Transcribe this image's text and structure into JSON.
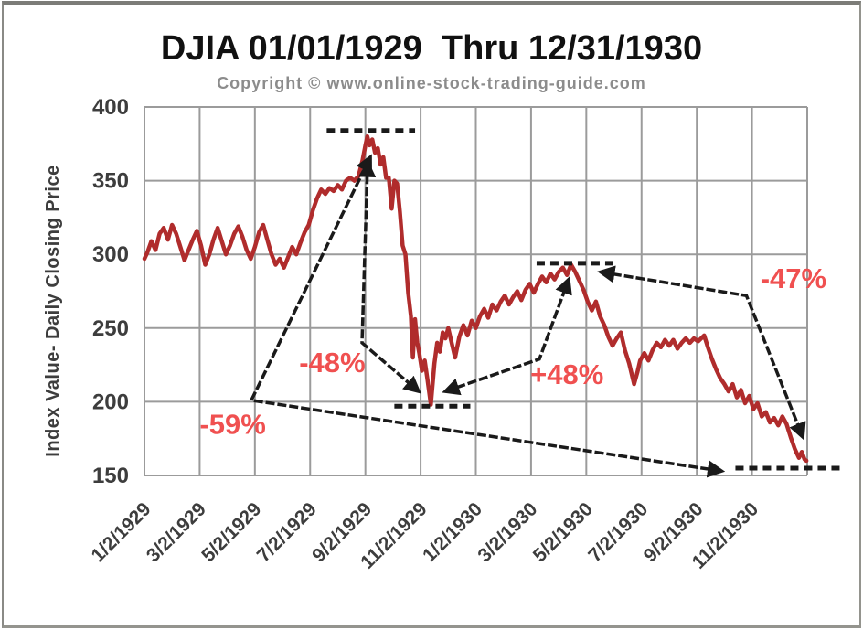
{
  "chart_data": {
    "type": "line",
    "title": "DJIA 01/01/1929  Thru 12/31/1930",
    "subtitle": "Copyright © www.online-stock-trading-guide.com",
    "ylabel": "Index Value- Daily Closing Price",
    "ylim": [
      150,
      400
    ],
    "y_ticks": [
      150,
      200,
      250,
      300,
      350,
      400
    ],
    "xlim_months": [
      0,
      24
    ],
    "x_tick_months": [
      0,
      2,
      4,
      6,
      8,
      10,
      12,
      14,
      16,
      18,
      20,
      22
    ],
    "x_tick_labels": [
      "1/2/1929",
      "3/2/1929",
      "5/2/1929",
      "7/2/1929",
      "9/2/1929",
      "11/2/1929",
      "1/2/1930",
      "3/2/1930",
      "5/2/1930",
      "7/2/1930",
      "9/2/1930",
      "11/2/1930"
    ],
    "grid": true,
    "legend": "none",
    "series": [
      {
        "name": "DJIA Daily Closing Price",
        "color": "#b02c2c",
        "points": [
          [
            0.0,
            297
          ],
          [
            0.1,
            301
          ],
          [
            0.25,
            309
          ],
          [
            0.4,
            303
          ],
          [
            0.55,
            314
          ],
          [
            0.7,
            318
          ],
          [
            0.85,
            310
          ],
          [
            1.0,
            320
          ],
          [
            1.15,
            314
          ],
          [
            1.3,
            305
          ],
          [
            1.45,
            296
          ],
          [
            1.6,
            303
          ],
          [
            1.75,
            310
          ],
          [
            1.9,
            316
          ],
          [
            2.05,
            306
          ],
          [
            2.2,
            293
          ],
          [
            2.35,
            300
          ],
          [
            2.5,
            310
          ],
          [
            2.65,
            318
          ],
          [
            2.8,
            309
          ],
          [
            2.95,
            300
          ],
          [
            3.1,
            306
          ],
          [
            3.25,
            314
          ],
          [
            3.4,
            319
          ],
          [
            3.55,
            312
          ],
          [
            3.7,
            303
          ],
          [
            3.85,
            297
          ],
          [
            4.0,
            305
          ],
          [
            4.15,
            315
          ],
          [
            4.3,
            320
          ],
          [
            4.45,
            310
          ],
          [
            4.6,
            300
          ],
          [
            4.75,
            293
          ],
          [
            4.9,
            297
          ],
          [
            5.05,
            291
          ],
          [
            5.2,
            298
          ],
          [
            5.35,
            305
          ],
          [
            5.5,
            300
          ],
          [
            5.65,
            308
          ],
          [
            5.8,
            315
          ],
          [
            5.95,
            320
          ],
          [
            6.1,
            330
          ],
          [
            6.25,
            338
          ],
          [
            6.4,
            344
          ],
          [
            6.55,
            341
          ],
          [
            6.7,
            345
          ],
          [
            6.85,
            343
          ],
          [
            7.0,
            347
          ],
          [
            7.15,
            344
          ],
          [
            7.3,
            350
          ],
          [
            7.45,
            352
          ],
          [
            7.6,
            350
          ],
          [
            7.75,
            353
          ],
          [
            7.9,
            364
          ],
          [
            8.0,
            374
          ],
          [
            8.07,
            380
          ],
          [
            8.15,
            374
          ],
          [
            8.25,
            378
          ],
          [
            8.35,
            369
          ],
          [
            8.45,
            372
          ],
          [
            8.55,
            361
          ],
          [
            8.65,
            366
          ],
          [
            8.75,
            352
          ],
          [
            8.85,
            352
          ],
          [
            8.95,
            331
          ],
          [
            9.05,
            350
          ],
          [
            9.15,
            348
          ],
          [
            9.25,
            329
          ],
          [
            9.35,
            306
          ],
          [
            9.45,
            300
          ],
          [
            9.55,
            274
          ],
          [
            9.65,
            258
          ],
          [
            9.72,
            230
          ],
          [
            9.8,
            256
          ],
          [
            9.88,
            240
          ],
          [
            9.95,
            233
          ],
          [
            10.05,
            221
          ],
          [
            10.15,
            228
          ],
          [
            10.25,
            215
          ],
          [
            10.37,
            198
          ],
          [
            10.5,
            226
          ],
          [
            10.6,
            240
          ],
          [
            10.7,
            234
          ],
          [
            10.8,
            247
          ],
          [
            10.9,
            243
          ],
          [
            11.0,
            250
          ],
          [
            11.1,
            242
          ],
          [
            11.25,
            230
          ],
          [
            11.4,
            244
          ],
          [
            11.55,
            252
          ],
          [
            11.7,
            245
          ],
          [
            11.85,
            255
          ],
          [
            12.0,
            250
          ],
          [
            12.15,
            258
          ],
          [
            12.3,
            263
          ],
          [
            12.45,
            257
          ],
          [
            12.6,
            266
          ],
          [
            12.75,
            262
          ],
          [
            12.9,
            268
          ],
          [
            13.05,
            272
          ],
          [
            13.2,
            266
          ],
          [
            13.35,
            271
          ],
          [
            13.5,
            275
          ],
          [
            13.65,
            269
          ],
          [
            13.8,
            276
          ],
          [
            13.95,
            280
          ],
          [
            14.1,
            274
          ],
          [
            14.25,
            280
          ],
          [
            14.4,
            285
          ],
          [
            14.55,
            281
          ],
          [
            14.7,
            287
          ],
          [
            14.85,
            283
          ],
          [
            15.0,
            288
          ],
          [
            15.15,
            291
          ],
          [
            15.3,
            286
          ],
          [
            15.45,
            293
          ],
          [
            15.6,
            288
          ],
          [
            15.75,
            282
          ],
          [
            15.9,
            276
          ],
          [
            16.05,
            268
          ],
          [
            16.2,
            262
          ],
          [
            16.35,
            268
          ],
          [
            16.5,
            258
          ],
          [
            16.65,
            252
          ],
          [
            16.8,
            244
          ],
          [
            16.95,
            238
          ],
          [
            17.1,
            243
          ],
          [
            17.25,
            247
          ],
          [
            17.4,
            235
          ],
          [
            17.55,
            226
          ],
          [
            17.73,
            212
          ],
          [
            17.85,
            220
          ],
          [
            17.95,
            228
          ],
          [
            18.1,
            233
          ],
          [
            18.25,
            228
          ],
          [
            18.4,
            235
          ],
          [
            18.55,
            240
          ],
          [
            18.7,
            237
          ],
          [
            18.85,
            242
          ],
          [
            19.0,
            238
          ],
          [
            19.15,
            242
          ],
          [
            19.3,
            236
          ],
          [
            19.45,
            240
          ],
          [
            19.6,
            243
          ],
          [
            19.75,
            240
          ],
          [
            19.9,
            243
          ],
          [
            20.05,
            241
          ],
          [
            20.27,
            245
          ],
          [
            20.4,
            237
          ],
          [
            20.55,
            229
          ],
          [
            20.7,
            222
          ],
          [
            20.85,
            216
          ],
          [
            21.0,
            212
          ],
          [
            21.15,
            207
          ],
          [
            21.3,
            212
          ],
          [
            21.45,
            203
          ],
          [
            21.6,
            208
          ],
          [
            21.75,
            199
          ],
          [
            21.9,
            204
          ],
          [
            22.05,
            195
          ],
          [
            22.2,
            199
          ],
          [
            22.35,
            190
          ],
          [
            22.5,
            193
          ],
          [
            22.65,
            186
          ],
          [
            22.8,
            189
          ],
          [
            22.95,
            184
          ],
          [
            23.1,
            190
          ],
          [
            23.25,
            185
          ],
          [
            23.4,
            176
          ],
          [
            23.55,
            168
          ],
          [
            23.7,
            162
          ],
          [
            23.8,
            166
          ],
          [
            23.9,
            161
          ],
          [
            23.97,
            160
          ]
        ]
      }
    ],
    "annotations": {
      "dashed_levels": [
        {
          "name": "peak-1929-level",
          "value": 384,
          "m1": 6.6,
          "m2": 9.8
        },
        {
          "name": "trough-nov-1929-level",
          "value": 197,
          "m1": 9.05,
          "m2": 11.8
        },
        {
          "name": "peak-apr-1930-level",
          "value": 294,
          "m1": 14.2,
          "m2": 17.05
        },
        {
          "name": "low-dec-1930-level",
          "value": 155,
          "m1": 21.4,
          "m2": 25.2
        }
      ],
      "arrows": [
        {
          "name": "decline-59-arrow",
          "points": [
            [
              8.18,
              366
            ],
            [
              3.87,
              201
            ],
            [
              20.9,
              153
            ]
          ]
        },
        {
          "name": "decline-48-arrow",
          "points": [
            [
              8.08,
              362
            ],
            [
              7.88,
              240
            ],
            [
              9.93,
              207
            ]
          ]
        },
        {
          "name": "rally-48-arrow",
          "points": [
            [
              10.89,
              207
            ],
            [
              14.3,
              229
            ],
            [
              15.36,
              283
            ]
          ]
        },
        {
          "name": "decline-47-arrow",
          "points": [
            [
              16.52,
              288
            ],
            [
              21.8,
              272
            ],
            [
              23.84,
              176
            ]
          ]
        }
      ],
      "labels": [
        {
          "text": "-59%",
          "m": 3.2,
          "value": 185
        },
        {
          "text": "-48%",
          "m": 6.8,
          "value": 227
        },
        {
          "text": "+48%",
          "m": 15.3,
          "value": 219
        },
        {
          "text": "-47%",
          "m": 23.5,
          "value": 284
        }
      ]
    },
    "colors": {
      "line": "#b02c2c",
      "annotation_text": "#f05050",
      "arrow": "#1a1a1a",
      "grid": "#9b9b9b",
      "axis_text": "#3d3d3d",
      "title": "#111111",
      "subtitle": "#8c8c8c"
    }
  }
}
